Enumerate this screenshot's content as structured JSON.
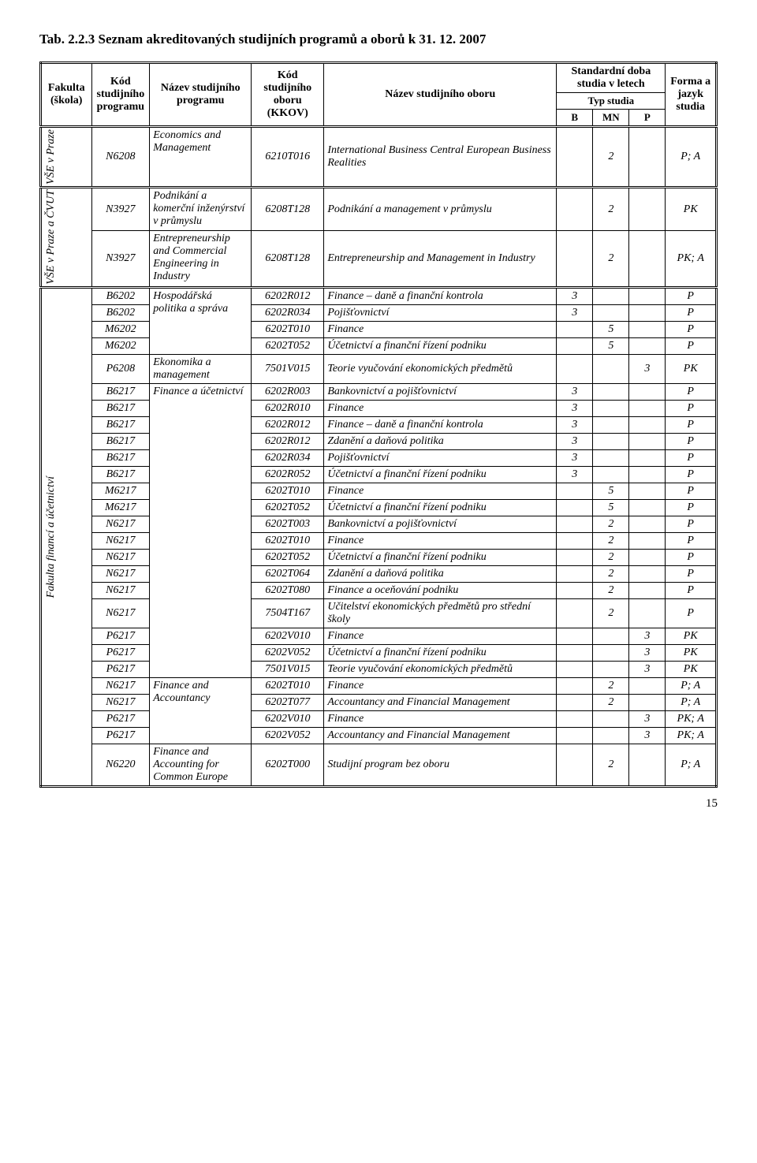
{
  "title": "Tab. 2.2.3 Seznam akreditovaných studijních programů a oborů k 31. 12. 2007",
  "page_num": "15",
  "header": {
    "c1": "Fakulta (škola)",
    "c2": "Kód studijního programu",
    "c3": "Název studijního programu",
    "c4": "Kód studijního oboru (KKOV)",
    "c5": "Název studijního oboru",
    "c6_top": "Standardní doba studia v letech",
    "c6_sub": "Typ studia",
    "c6_B": "B",
    "c6_MN": "MN",
    "c6_P": "P",
    "c7": "Forma a jazyk studia"
  },
  "vert1": "VŠE v Praze",
  "vert2": "VŠE v Praze a ČVUT",
  "vert3": "Fakulta financí a účetnictví",
  "rows": [
    {
      "kod_prog": "N6208",
      "nazev_prog": "Economics and Management",
      "kkov": "6210T016",
      "obor": "International Business Central European Business Realities",
      "B": "",
      "MN": "2",
      "P": "",
      "forma": "P; A"
    },
    {
      "kod_prog": "N3927",
      "nazev_prog": "Podnikání a komerční inženýrství v průmyslu",
      "kkov": "6208T128",
      "obor": "Podnikání a management v průmyslu",
      "B": "",
      "MN": "2",
      "P": "",
      "forma": "PK"
    },
    {
      "kod_prog": "N3927",
      "nazev_prog": "Entrepreneurship and Commercial Engineering in Industry",
      "kkov": "6208T128",
      "obor": "Entrepreneurship and Management in Industry",
      "B": "",
      "MN": "2",
      "P": "",
      "forma": "PK; A"
    },
    {
      "kod_prog": "B6202",
      "nazev_prog": "Hospodářská politika a správa",
      "kkov": "6202R012",
      "obor": "Finance – daně a finanční kontrola",
      "B": "3",
      "MN": "",
      "P": "",
      "forma": "P"
    },
    {
      "kod_prog": "B6202",
      "nazev_prog": "",
      "kkov": "6202R034",
      "obor": "Pojišťovnictví",
      "B": "3",
      "MN": "",
      "P": "",
      "forma": "P"
    },
    {
      "kod_prog": "M6202",
      "nazev_prog": "",
      "kkov": "6202T010",
      "obor": "Finance",
      "B": "",
      "MN": "5",
      "P": "",
      "forma": "P"
    },
    {
      "kod_prog": "M6202",
      "nazev_prog": "",
      "kkov": "6202T052",
      "obor": "Účetnictví a finanční řízení podniku",
      "B": "",
      "MN": "5",
      "P": "",
      "forma": "P"
    },
    {
      "kod_prog": "P6208",
      "nazev_prog": "Ekonomika a management",
      "kkov": "7501V015",
      "obor": "Teorie vyučování ekonomických předmětů",
      "B": "",
      "MN": "",
      "P": "3",
      "forma": "PK"
    },
    {
      "kod_prog": "B6217",
      "nazev_prog": "Finance a účetnictví",
      "kkov": "6202R003",
      "obor": "Bankovnictví a pojišťovnictví",
      "B": "3",
      "MN": "",
      "P": "",
      "forma": "P"
    },
    {
      "kod_prog": "B6217",
      "nazev_prog": "",
      "kkov": "6202R010",
      "obor": "Finance",
      "B": "3",
      "MN": "",
      "P": "",
      "forma": "P"
    },
    {
      "kod_prog": "B6217",
      "nazev_prog": "",
      "kkov": "6202R012",
      "obor": "Finance – daně a finanční kontrola",
      "B": "3",
      "MN": "",
      "P": "",
      "forma": "P"
    },
    {
      "kod_prog": "B6217",
      "nazev_prog": "",
      "kkov": "6202R012",
      "obor": "Zdanění a daňová politika",
      "B": "3",
      "MN": "",
      "P": "",
      "forma": "P"
    },
    {
      "kod_prog": "B6217",
      "nazev_prog": "",
      "kkov": "6202R034",
      "obor": "Pojišťovnictví",
      "B": "3",
      "MN": "",
      "P": "",
      "forma": "P"
    },
    {
      "kod_prog": "B6217",
      "nazev_prog": "",
      "kkov": "6202R052",
      "obor": "Účetnictví a finanční řízení podniku",
      "B": "3",
      "MN": "",
      "P": "",
      "forma": "P"
    },
    {
      "kod_prog": "M6217",
      "nazev_prog": "",
      "kkov": "6202T010",
      "obor": "Finance",
      "B": "",
      "MN": "5",
      "P": "",
      "forma": "P"
    },
    {
      "kod_prog": "M6217",
      "nazev_prog": "",
      "kkov": "6202T052",
      "obor": "Účetnictví a finanční řízení podniku",
      "B": "",
      "MN": "5",
      "P": "",
      "forma": "P"
    },
    {
      "kod_prog": "N6217",
      "nazev_prog": "",
      "kkov": "6202T003",
      "obor": "Bankovnictví a pojišťovnictví",
      "B": "",
      "MN": "2",
      "P": "",
      "forma": "P"
    },
    {
      "kod_prog": "N6217",
      "nazev_prog": "",
      "kkov": "6202T010",
      "obor": "Finance",
      "B": "",
      "MN": "2",
      "P": "",
      "forma": "P"
    },
    {
      "kod_prog": "N6217",
      "nazev_prog": "",
      "kkov": "6202T052",
      "obor": "Účetnictví a finanční řízení podniku",
      "B": "",
      "MN": "2",
      "P": "",
      "forma": "P"
    },
    {
      "kod_prog": "N6217",
      "nazev_prog": "",
      "kkov": "6202T064",
      "obor": "Zdanění a daňová politika",
      "B": "",
      "MN": "2",
      "P": "",
      "forma": "P"
    },
    {
      "kod_prog": "N6217",
      "nazev_prog": "",
      "kkov": "6202T080",
      "obor": "Finance a oceňování podniku",
      "B": "",
      "MN": "2",
      "P": "",
      "forma": "P"
    },
    {
      "kod_prog": "N6217",
      "nazev_prog": "",
      "kkov": "7504T167",
      "obor": "Učitelství ekonomických předmětů pro střední školy",
      "B": "",
      "MN": "2",
      "P": "",
      "forma": "P"
    },
    {
      "kod_prog": "P6217",
      "nazev_prog": "",
      "kkov": "6202V010",
      "obor": "Finance",
      "B": "",
      "MN": "",
      "P": "3",
      "forma": "PK"
    },
    {
      "kod_prog": "P6217",
      "nazev_prog": "",
      "kkov": "6202V052",
      "obor": "Účetnictví a finanční řízení podniku",
      "B": "",
      "MN": "",
      "P": "3",
      "forma": "PK"
    },
    {
      "kod_prog": "P6217",
      "nazev_prog": "",
      "kkov": "7501V015",
      "obor": "Teorie vyučování ekonomických předmětů",
      "B": "",
      "MN": "",
      "P": "3",
      "forma": "PK"
    },
    {
      "kod_prog": "N6217",
      "nazev_prog": "Finance and Accountancy",
      "kkov": "6202T010",
      "obor": "Finance",
      "B": "",
      "MN": "2",
      "P": "",
      "forma": "P; A"
    },
    {
      "kod_prog": "N6217",
      "nazev_prog": "",
      "kkov": "6202T077",
      "obor": "Accountancy and Financial Management",
      "B": "",
      "MN": "2",
      "P": "",
      "forma": "P; A"
    },
    {
      "kod_prog": "P6217",
      "nazev_prog": "",
      "kkov": "6202V010",
      "obor": "Finance",
      "B": "",
      "MN": "",
      "P": "3",
      "forma": "PK; A"
    },
    {
      "kod_prog": "P6217",
      "nazev_prog": "",
      "kkov": "6202V052",
      "obor": "Accountancy and Financial Management",
      "B": "",
      "MN": "",
      "P": "3",
      "forma": "PK; A"
    },
    {
      "kod_prog": "N6220",
      "nazev_prog": "Finance and Accounting for Common Europe",
      "kkov": "6202T000",
      "obor": "Studijní program bez oboru",
      "B": "",
      "MN": "2",
      "P": "",
      "forma": "P; A"
    }
  ]
}
